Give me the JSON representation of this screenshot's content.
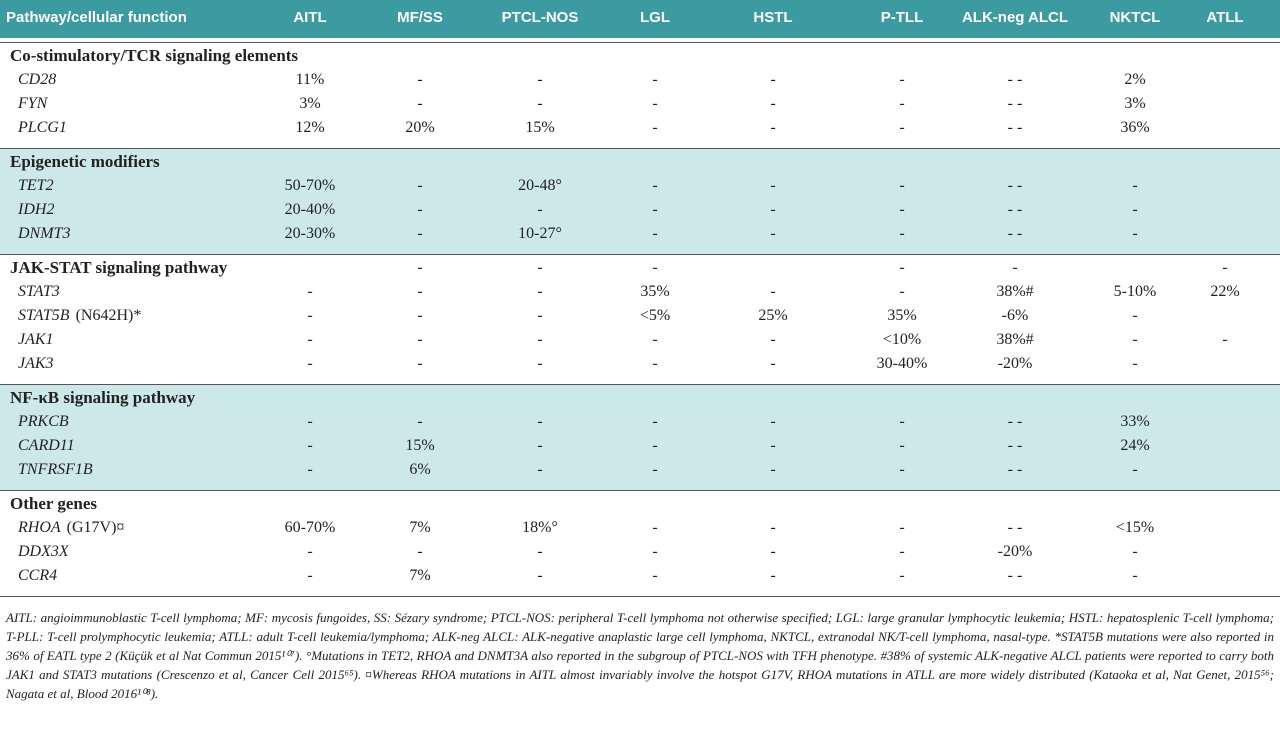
{
  "table": {
    "header": [
      "Pathway/cellular function",
      "AITL",
      "MF/SS",
      "PTCL-NOS",
      "LGL",
      "HSTL",
      "P-TLL",
      "ALK-neg ALCL",
      "NKTCL",
      "ATLL"
    ],
    "groups": [
      {
        "title": "Co-stimulatory/TCR signaling elements",
        "shaded": false,
        "cells": null,
        "rows": [
          {
            "gene": "CD28",
            "values": [
              "11%",
              "-",
              "-",
              "-",
              "-",
              "-",
              "- -",
              "2%",
              null
            ]
          },
          {
            "gene": "FYN",
            "values": [
              "3%",
              "-",
              "-",
              "-",
              "-",
              "-",
              "- -",
              "3%",
              null
            ]
          },
          {
            "gene": "PLCG1",
            "values": [
              "12%",
              "20%",
              "15%",
              "-",
              "-",
              "-",
              "- -",
              "36%",
              null
            ]
          }
        ]
      },
      {
        "title": "Epigenetic modifiers",
        "shaded": true,
        "cells": null,
        "rows": [
          {
            "gene": "TET2",
            "values": [
              "50-70%",
              "-",
              "20-48°",
              "-",
              "-",
              "-",
              "- -",
              "-",
              null
            ]
          },
          {
            "gene": "IDH2",
            "values": [
              "20-40%",
              "-",
              "-",
              "-",
              "-",
              "-",
              "- -",
              "-",
              null
            ]
          },
          {
            "gene": "DNMT3",
            "values": [
              "20-30%",
              "-",
              "10-27°",
              "-",
              "-",
              "-",
              "- -",
              "-",
              null
            ]
          }
        ]
      },
      {
        "title": "JAK-STAT signaling pathway",
        "shaded": false,
        "cells": [
          null,
          "-",
          "-",
          "-",
          null,
          "-",
          "-",
          null,
          "-"
        ],
        "rows": [
          {
            "gene": "STAT3",
            "values": [
              "-",
              "-",
              "-",
              "35%",
              "-",
              "-",
              "38%#",
              "5-10%",
              "22%"
            ]
          },
          {
            "gene": "STAT5B",
            "note": "(N642H)*",
            "values": [
              "-",
              "-",
              "-",
              "<5%",
              "25%",
              "35%",
              "-6%",
              "-",
              null
            ]
          },
          {
            "gene": "JAK1",
            "values": [
              "-",
              "-",
              "-",
              "-",
              "-",
              "<10%",
              "38%#",
              "-",
              "-"
            ]
          },
          {
            "gene": "JAK3",
            "values": [
              "-",
              "-",
              "-",
              "-",
              "-",
              "30-40%",
              "-20%",
              "-",
              null
            ]
          }
        ]
      },
      {
        "title": "NF-κB signaling pathway",
        "shaded": true,
        "cells": null,
        "rows": [
          {
            "gene": "PRKCB",
            "values": [
              "-",
              "-",
              "-",
              "-",
              "-",
              "-",
              "- -",
              "33%",
              null
            ]
          },
          {
            "gene": "CARD11",
            "values": [
              "-",
              "15%",
              "-",
              "-",
              "-",
              "-",
              "- -",
              "24%",
              null
            ]
          },
          {
            "gene": "TNFRSF1B",
            "values": [
              "-",
              "6%",
              "-",
              "-",
              "-",
              "-",
              "- -",
              "-",
              null
            ]
          }
        ]
      },
      {
        "title": "Other genes",
        "shaded": false,
        "cells": null,
        "rows": [
          {
            "gene": "RHOA",
            "note": "(G17V)¤",
            "values": [
              "60-70%",
              "7%",
              "18%°",
              "-",
              "-",
              "-",
              "- -",
              "<15%",
              null
            ]
          },
          {
            "gene": "DDX3X",
            "values": [
              "-",
              "-",
              "-",
              "-",
              "-",
              "-",
              "-20%",
              "-",
              null
            ]
          },
          {
            "gene": "CCR4",
            "values": [
              "-",
              "7%",
              "-",
              "-",
              "-",
              "-",
              "- -",
              "-",
              null
            ]
          }
        ]
      }
    ]
  },
  "footnote": "AITL: angioimmunoblastic T-cell lymphoma; MF: mycosis fungoides, SS: Sézary syndrome; PTCL-NOS: peripheral T-cell lymphoma not otherwise specified; LGL: large granular lymphocytic leukemia; HSTL: hepatosplenic T-cell lymphoma; T-PLL: T-cell prolymphocytic leukemia; ATLL: adult T-cell leukemia/lymphoma; ALK-neg ALCL: ALK-negative anaplastic large cell lymphoma, NKTCL, extranodal NK/T-cell lymphoma, nasal-type. *STAT5B mutations were also reported in 36% of EATL type 2 (Küçük et al Nat Commun 2015¹⁰⁷). °Mutations in TET2, RHOA and DNMT3A also reported in the subgroup of PTCL-NOS with TFH phenotype. #38% of systemic ALK-negative ALCL patients were reported to carry both JAK1 and STAT3 mutations (Crescenzo et al, Cancer Cell 2015⁶⁵). ¤Whereas RHOA mutations in AITL almost invariably involve the hotspot G17V, RHOA mutations in ATLL are more widely distributed (Kataoka et al, Nat Genet, 2015⁵⁶; Nagata et al, Blood 2016¹⁰⁸)."
}
